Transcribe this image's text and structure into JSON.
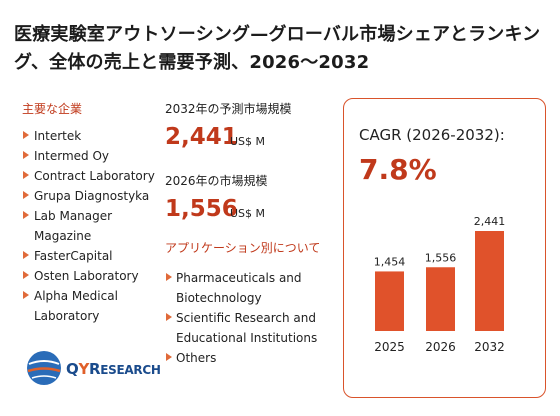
{
  "title": "医療実験室アウトソーシング—グローバル市場シェアとランキング、全体の売上と需要予測、2026～2032",
  "companies_heading": "主要な企業",
  "companies": [
    "Intertek",
    "Intermed Oy",
    "Contract Laboratory",
    "Grupa Diagnostyka",
    "Lab Manager Magazine",
    "FasterCapital",
    "Osten Laboratory",
    "Alpha Medical Laboratory"
  ],
  "forecast_label": "2032年の予測市場規模",
  "forecast_value": "2,441",
  "forecast_unit": "US$ M",
  "current_label": "2026年の市場規模",
  "current_value": "1,556",
  "current_unit": "US$ M",
  "apps_heading": "アプリケーション別について",
  "applications": [
    "Pharmaceuticals and Biotechnology",
    "Scientific Research and Educational Institutions",
    "Others"
  ],
  "cagr_label": "CAGR (2026-2032):",
  "cagr_value": "7.8%",
  "logo": {
    "q": "Q",
    "y": "Y",
    "r": "R",
    "rest": "ESEARCH"
  },
  "colors": {
    "accent": "#c0391b",
    "bar": "#e0522b"
  },
  "chart_data": {
    "type": "bar",
    "categories": [
      "2025",
      "2026",
      "2032"
    ],
    "values": [
      1454,
      1556,
      2441
    ],
    "data_labels": [
      "1,454",
      "1,556",
      "2,441"
    ],
    "ylim": [
      0,
      2441
    ]
  }
}
